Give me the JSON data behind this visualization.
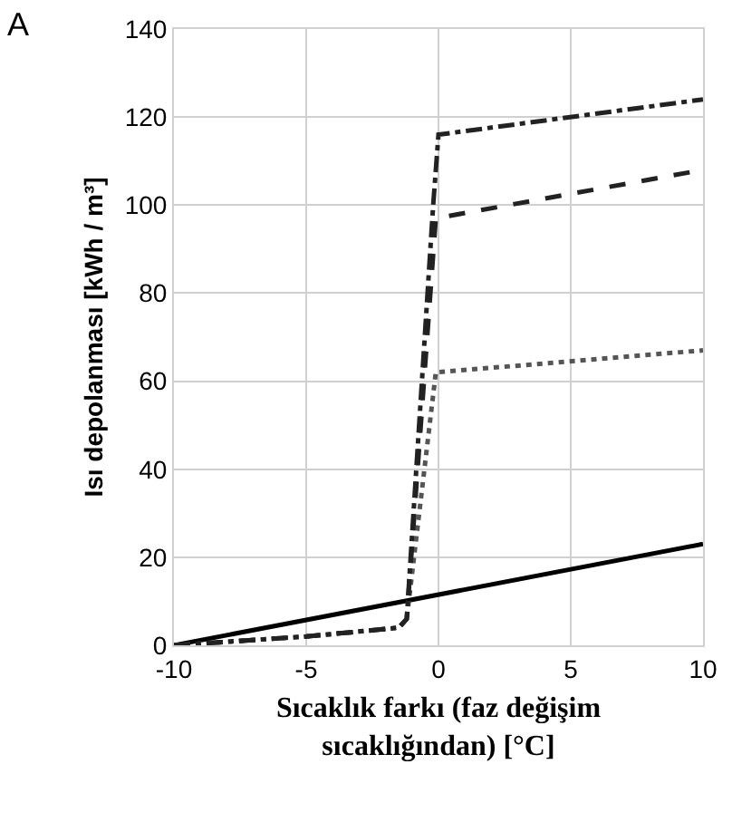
{
  "chart_data": {
    "type": "line",
    "title": "A",
    "xlabel": "Sıcaklık farkı (faz değişim\nsıcaklığından) [°C]",
    "ylabel": "Isı depolanması [kWh / m³]",
    "xlim": [
      -10,
      10
    ],
    "xticks": [
      -10,
      -5,
      0,
      5,
      10
    ],
    "ylim": [
      0,
      140
    ],
    "yticks": [
      0,
      20,
      40,
      60,
      80,
      100,
      120,
      140
    ],
    "grid": true,
    "series": [
      {
        "color": "#000000",
        "line_style": "solid",
        "x": [
          -10,
          10
        ],
        "values": [
          0,
          23
        ]
      },
      {
        "color": "#555555",
        "line_style": "dotted",
        "x": [
          -10,
          -5,
          -1.5,
          -1.2,
          -0.1,
          10
        ],
        "values": [
          0,
          2,
          4,
          6,
          62,
          67
        ]
      },
      {
        "color": "#222222",
        "line_style": "dashed",
        "x": [
          -10,
          -5,
          -1.5,
          -1.2,
          -0.1,
          10
        ],
        "values": [
          0,
          2,
          4,
          6,
          97,
          108
        ]
      },
      {
        "color": "#222222",
        "line_style": "dashdot",
        "x": [
          -10,
          -5,
          -1.5,
          -1.2,
          -0.2,
          0,
          10
        ],
        "values": [
          0,
          2,
          4,
          6,
          100,
          116,
          124
        ]
      }
    ]
  }
}
